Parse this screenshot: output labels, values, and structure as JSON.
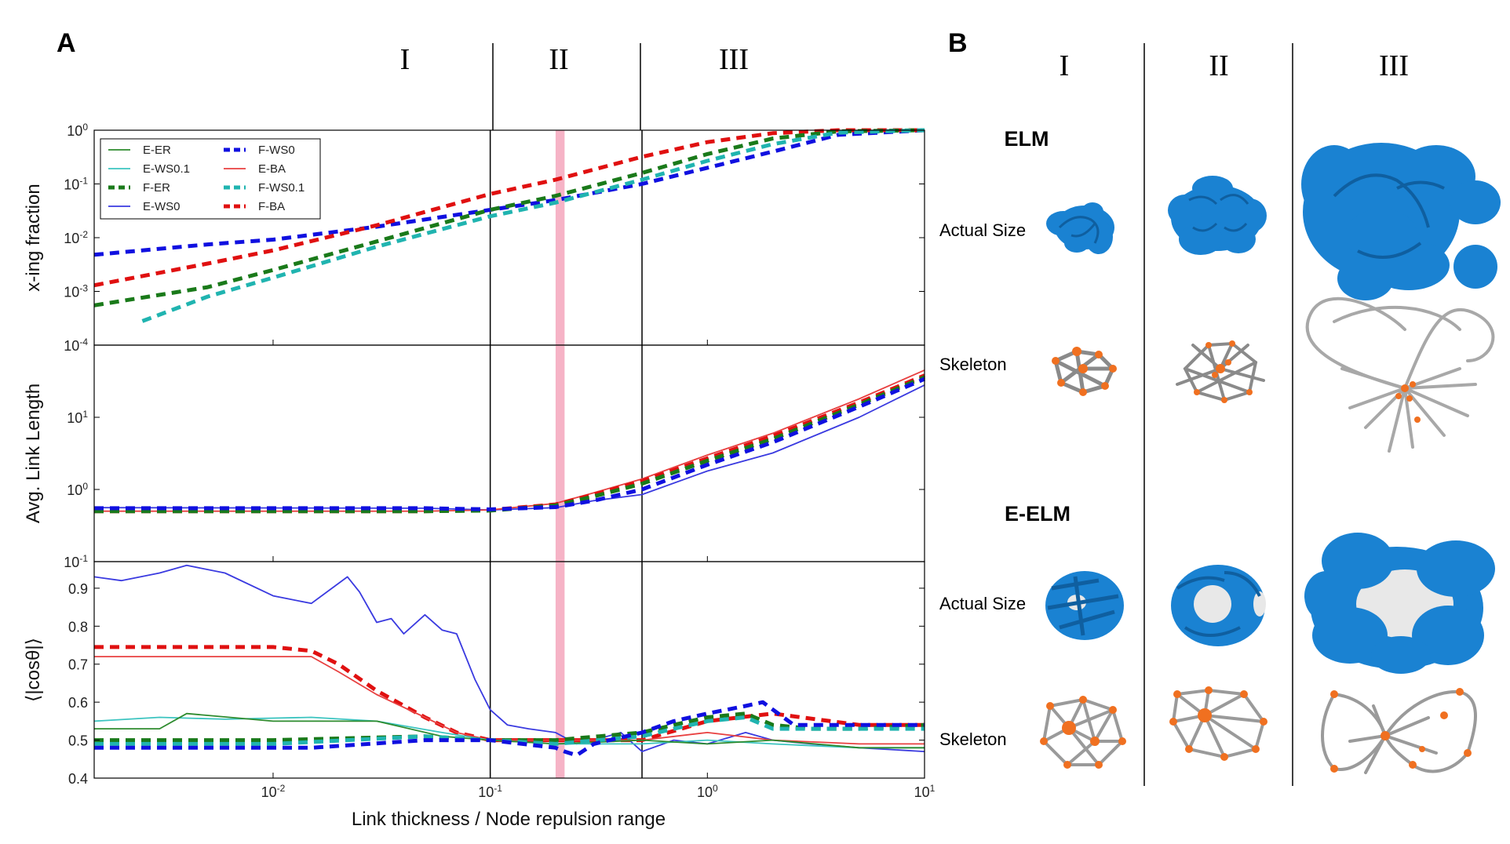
{
  "panel_a": {
    "letter": "A",
    "regimes": [
      "I",
      "II",
      "III"
    ],
    "xlabel": "Link thickness / Node repulsion range",
    "x_ticks": [
      {
        "value": 0.01,
        "base": "10",
        "exp": "-2"
      },
      {
        "value": 0.1,
        "base": "10",
        "exp": "-1"
      },
      {
        "value": 1,
        "base": "10",
        "exp": "0"
      },
      {
        "value": 10,
        "base": "10",
        "exp": "1"
      }
    ],
    "legend": [
      {
        "label": "E-ER",
        "color": "#2e8b2e",
        "style": "solid"
      },
      {
        "label": "E-WS0.1",
        "color": "#3cc4c0",
        "style": "solid"
      },
      {
        "label": "F-ER",
        "color": "#1a7a1a",
        "style": "dashed"
      },
      {
        "label": "E-WS0",
        "color": "#3a3ae0",
        "style": "solid"
      },
      {
        "label": "F-WS0",
        "color": "#1010e0",
        "style": "dashed"
      },
      {
        "label": "E-BA",
        "color": "#e84040",
        "style": "solid"
      },
      {
        "label": "F-WS0.1",
        "color": "#20b4b0",
        "style": "dashed"
      },
      {
        "label": "F-BA",
        "color": "#e01010",
        "style": "dashed"
      }
    ]
  },
  "chart_data": [
    {
      "type": "line",
      "ylabel": "x-ing fraction",
      "xscale": "log",
      "yscale": "log",
      "xlim": [
        0.0015,
        10
      ],
      "ylim": [
        0.0001,
        1
      ],
      "y_ticks": [
        {
          "value": 1,
          "base": "10",
          "exp": "0"
        },
        {
          "value": 0.1,
          "base": "10",
          "exp": "-1"
        },
        {
          "value": 0.01,
          "base": "10",
          "exp": "-2"
        },
        {
          "value": 0.001,
          "base": "10",
          "exp": "-3"
        },
        {
          "value": 0.0001,
          "base": "10",
          "exp": "-4"
        }
      ],
      "legend_position": "top-left",
      "vlines": [
        0.1,
        0.5
      ],
      "band": [
        0.2,
        0.22
      ],
      "series": [
        {
          "name": "F-WS0",
          "x": [
            0.0015,
            0.005,
            0.01,
            0.03,
            0.1,
            0.2,
            0.5,
            1,
            2,
            4,
            10
          ],
          "y": [
            0.0048,
            0.0075,
            0.0092,
            0.016,
            0.033,
            0.05,
            0.1,
            0.2,
            0.4,
            0.82,
            1
          ]
        },
        {
          "name": "F-BA",
          "x": [
            0.0015,
            0.005,
            0.01,
            0.03,
            0.1,
            0.2,
            0.5,
            1,
            2,
            4,
            10
          ],
          "y": [
            0.0013,
            0.0033,
            0.0058,
            0.017,
            0.065,
            0.12,
            0.32,
            0.6,
            0.88,
            1,
            1
          ]
        },
        {
          "name": "F-ER",
          "x": [
            0.0015,
            0.005,
            0.01,
            0.03,
            0.1,
            0.2,
            0.5,
            1,
            2,
            4,
            10
          ],
          "y": [
            0.00055,
            0.0012,
            0.0025,
            0.0085,
            0.033,
            0.06,
            0.16,
            0.36,
            0.7,
            0.95,
            1
          ]
        },
        {
          "name": "F-WS0.1",
          "x": [
            0.0025,
            0.005,
            0.01,
            0.03,
            0.1,
            0.2,
            0.5,
            1,
            2,
            4,
            10
          ],
          "y": [
            0.00028,
            0.0008,
            0.0018,
            0.0068,
            0.025,
            0.045,
            0.12,
            0.27,
            0.55,
            0.9,
            1
          ]
        }
      ]
    },
    {
      "type": "line",
      "ylabel": "Avg. Link Length",
      "xscale": "log",
      "yscale": "log",
      "xlim": [
        0.0015,
        10
      ],
      "ylim": [
        0.1,
        100
      ],
      "y_ticks": [
        {
          "value": 10,
          "base": "10",
          "exp": "1"
        },
        {
          "value": 1,
          "base": "10",
          "exp": "0"
        },
        {
          "value": 0.1,
          "base": "10",
          "exp": "-1"
        }
      ],
      "vlines": [
        0.1,
        0.5
      ],
      "band": [
        0.2,
        0.22
      ],
      "series": [
        {
          "name": "E-WS0",
          "x": [
            0.0015,
            0.05,
            0.1,
            0.2,
            0.3,
            0.5,
            1,
            2,
            5,
            10
          ],
          "y": [
            0.56,
            0.55,
            0.52,
            0.56,
            0.7,
            0.85,
            1.8,
            3.2,
            10,
            28
          ]
        },
        {
          "name": "E-BA",
          "x": [
            0.0015,
            0.05,
            0.1,
            0.2,
            0.3,
            0.5,
            1,
            2,
            5,
            10
          ],
          "y": [
            0.5,
            0.5,
            0.52,
            0.64,
            0.9,
            1.4,
            3,
            6,
            18,
            45
          ]
        },
        {
          "name": "F-BA",
          "x": [
            0.0015,
            0.05,
            0.1,
            0.2,
            0.3,
            0.5,
            1,
            2,
            5,
            10
          ],
          "y": [
            0.5,
            0.5,
            0.52,
            0.62,
            0.85,
            1.3,
            2.7,
            5.5,
            16,
            38
          ]
        },
        {
          "name": "F-ER",
          "x": [
            0.0015,
            0.05,
            0.1,
            0.2,
            0.3,
            0.5,
            1,
            2,
            5,
            10
          ],
          "y": [
            0.5,
            0.5,
            0.51,
            0.6,
            0.8,
            1.2,
            2.5,
            5,
            15,
            36
          ]
        },
        {
          "name": "F-WS0",
          "x": [
            0.0015,
            0.05,
            0.1,
            0.2,
            0.3,
            0.5,
            1,
            2,
            5,
            10
          ],
          "y": [
            0.55,
            0.55,
            0.53,
            0.57,
            0.7,
            1.0,
            2.2,
            4.5,
            14,
            34
          ]
        }
      ]
    },
    {
      "type": "line",
      "ylabel": "⟨|cosθ|⟩",
      "xscale": "log",
      "yscale": "linear",
      "xlim": [
        0.0015,
        10
      ],
      "ylim": [
        0.4,
        0.97
      ],
      "y_ticks": [
        {
          "value": 0.9,
          "base": "0.9",
          "exp": ""
        },
        {
          "value": 0.8,
          "base": "0.8",
          "exp": ""
        },
        {
          "value": 0.7,
          "base": "0.7",
          "exp": ""
        },
        {
          "value": 0.6,
          "base": "0.6",
          "exp": ""
        },
        {
          "value": 0.5,
          "base": "0.5",
          "exp": ""
        },
        {
          "value": 0.4,
          "base": "0.4",
          "exp": ""
        }
      ],
      "vlines": [
        0.1,
        0.5
      ],
      "band": [
        0.2,
        0.22
      ],
      "series": [
        {
          "name": "E-WS0",
          "x": [
            0.0015,
            0.002,
            0.003,
            0.004,
            0.006,
            0.01,
            0.015,
            0.022,
            0.025,
            0.03,
            0.035,
            0.04,
            0.05,
            0.06,
            0.07,
            0.085,
            0.1,
            0.12,
            0.15,
            0.2,
            0.25,
            0.3,
            0.4,
            0.5,
            0.7,
            1,
            1.5,
            2,
            3,
            5,
            10
          ],
          "y": [
            0.93,
            0.92,
            0.94,
            0.96,
            0.94,
            0.88,
            0.86,
            0.93,
            0.89,
            0.81,
            0.82,
            0.78,
            0.83,
            0.79,
            0.78,
            0.66,
            0.58,
            0.54,
            0.53,
            0.52,
            0.49,
            0.5,
            0.52,
            0.47,
            0.5,
            0.49,
            0.52,
            0.5,
            0.49,
            0.48,
            0.47
          ]
        },
        {
          "name": "F-BA",
          "x": [
            0.0015,
            0.01,
            0.015,
            0.02,
            0.03,
            0.05,
            0.07,
            0.1,
            0.2,
            0.5,
            1,
            2,
            5,
            10
          ],
          "y": [
            0.745,
            0.745,
            0.735,
            0.7,
            0.63,
            0.56,
            0.52,
            0.5,
            0.5,
            0.5,
            0.55,
            0.57,
            0.54,
            0.54
          ]
        },
        {
          "name": "E-BA",
          "x": [
            0.0015,
            0.015,
            0.02,
            0.03,
            0.05,
            0.07,
            0.1,
            0.2,
            0.5,
            1,
            2,
            5,
            10
          ],
          "y": [
            0.72,
            0.72,
            0.68,
            0.62,
            0.56,
            0.52,
            0.5,
            0.5,
            0.5,
            0.52,
            0.5,
            0.49,
            0.49
          ]
        },
        {
          "name": "E-WS0.1",
          "x": [
            0.0015,
            0.003,
            0.006,
            0.015,
            0.03,
            0.06,
            0.1,
            0.2,
            0.5,
            1,
            2,
            5,
            10
          ],
          "y": [
            0.55,
            0.56,
            0.555,
            0.56,
            0.55,
            0.52,
            0.5,
            0.49,
            0.49,
            0.5,
            0.49,
            0.48,
            0.48
          ]
        },
        {
          "name": "E-ER",
          "x": [
            0.0015,
            0.003,
            0.004,
            0.01,
            0.02,
            0.03,
            0.06,
            0.1,
            0.2,
            0.5,
            1,
            2,
            5,
            10
          ],
          "y": [
            0.53,
            0.53,
            0.57,
            0.55,
            0.55,
            0.55,
            0.51,
            0.5,
            0.49,
            0.5,
            0.49,
            0.5,
            0.48,
            0.48
          ]
        },
        {
          "name": "F-ER",
          "x": [
            0.0015,
            0.01,
            0.05,
            0.1,
            0.2,
            0.5,
            0.7,
            1,
            1.5,
            2,
            3,
            5,
            10
          ],
          "y": [
            0.5,
            0.5,
            0.51,
            0.5,
            0.5,
            0.52,
            0.54,
            0.56,
            0.57,
            0.54,
            0.53,
            0.53,
            0.54
          ]
        },
        {
          "name": "F-WS0.1",
          "x": [
            0.0015,
            0.01,
            0.05,
            0.1,
            0.2,
            0.5,
            0.7,
            1,
            1.5,
            2,
            3,
            5,
            10
          ],
          "y": [
            0.49,
            0.49,
            0.51,
            0.5,
            0.49,
            0.51,
            0.53,
            0.55,
            0.56,
            0.53,
            0.53,
            0.53,
            0.53
          ]
        },
        {
          "name": "F-WS0",
          "x": [
            0.0015,
            0.01,
            0.015,
            0.05,
            0.1,
            0.2,
            0.22,
            0.25,
            0.3,
            0.5,
            0.7,
            1,
            1.5,
            1.8,
            2.5,
            5,
            10
          ],
          "y": [
            0.48,
            0.48,
            0.48,
            0.5,
            0.5,
            0.48,
            0.47,
            0.46,
            0.49,
            0.52,
            0.55,
            0.57,
            0.59,
            0.6,
            0.54,
            0.54,
            0.54
          ]
        }
      ]
    }
  ],
  "panel_b": {
    "letter": "B",
    "columns": [
      "I",
      "II",
      "III"
    ],
    "models": [
      "ELM",
      "E-ELM"
    ],
    "rows": [
      "Actual Size",
      "Skeleton",
      "Actual Size",
      "Skeleton"
    ],
    "blob_color": "#1a82d2",
    "node_color": "#f07020",
    "link_color": "#b8b8b8"
  }
}
